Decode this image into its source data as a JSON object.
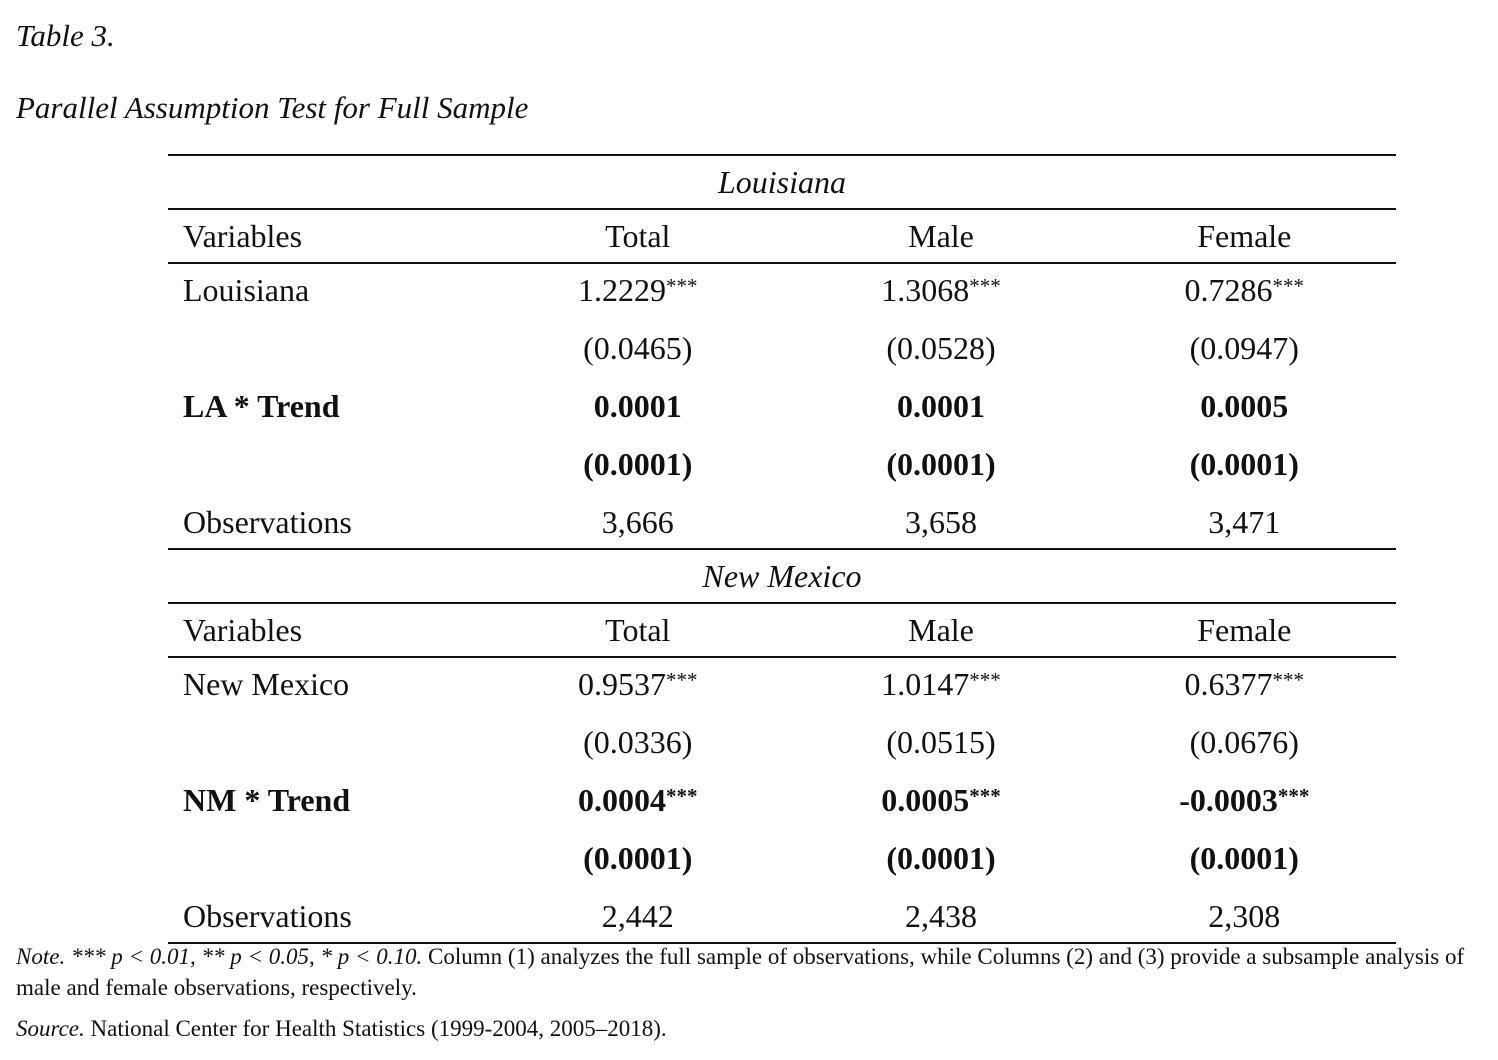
{
  "caption": {
    "number": "Table 3.",
    "title": "Parallel Assumption Test for Full Sample"
  },
  "columns": [
    "Variables",
    "Total",
    "Male",
    "Female"
  ],
  "panels": [
    {
      "name": "Louisiana",
      "rows": [
        {
          "label": "Louisiana",
          "bold": false,
          "values": [
            "1.2229",
            "1.3068",
            "0.7286"
          ],
          "stars": [
            "***",
            "***",
            "***"
          ]
        },
        {
          "label": "",
          "bold": false,
          "values": [
            "(0.0465)",
            "(0.0528)",
            "(0.0947)"
          ],
          "stars": [
            "",
            "",
            ""
          ]
        },
        {
          "label": "LA * Trend",
          "bold": true,
          "values": [
            "0.0001",
            "0.0001",
            "0.0005"
          ],
          "stars": [
            "",
            "",
            ""
          ]
        },
        {
          "label": "",
          "bold": true,
          "values": [
            "(0.0001)",
            "(0.0001)",
            "(0.0001)"
          ],
          "stars": [
            "",
            "",
            ""
          ]
        },
        {
          "label": "Observations",
          "bold": false,
          "values": [
            "3,666",
            "3,658",
            "3,471"
          ],
          "stars": [
            "",
            "",
            ""
          ]
        }
      ]
    },
    {
      "name": "New Mexico",
      "rows": [
        {
          "label": "New Mexico",
          "bold": false,
          "values": [
            "0.9537",
            "1.0147",
            "0.6377"
          ],
          "stars": [
            "***",
            "***",
            "***"
          ]
        },
        {
          "label": "",
          "bold": false,
          "values": [
            "(0.0336)",
            "(0.0515)",
            "(0.0676)"
          ],
          "stars": [
            "",
            "",
            ""
          ]
        },
        {
          "label": "NM * Trend",
          "bold": true,
          "values": [
            "0.0004",
            "0.0005",
            "-0.0003"
          ],
          "stars": [
            "***",
            "***",
            "***"
          ]
        },
        {
          "label": "",
          "bold": true,
          "values": [
            "(0.0001)",
            "(0.0001)",
            "(0.0001)"
          ],
          "stars": [
            "",
            "",
            ""
          ]
        },
        {
          "label": "Observations",
          "bold": false,
          "values": [
            "2,442",
            "2,438",
            "2,308"
          ],
          "stars": [
            "",
            "",
            ""
          ]
        }
      ]
    }
  ],
  "note": {
    "lead": "Note.",
    "sig1": "*** p < 0.01,",
    "sig2": "** p < 0.05,",
    "sig3": "* p < 0.10.",
    "text": "Column (1) analyzes the full sample of observations, while Columns (2) and (3) provide a subsample analysis of male and female observations, respectively."
  },
  "source": {
    "lead": "Source.",
    "text": "National Center for Health Statistics (1999-2004, 2005–2018)."
  }
}
